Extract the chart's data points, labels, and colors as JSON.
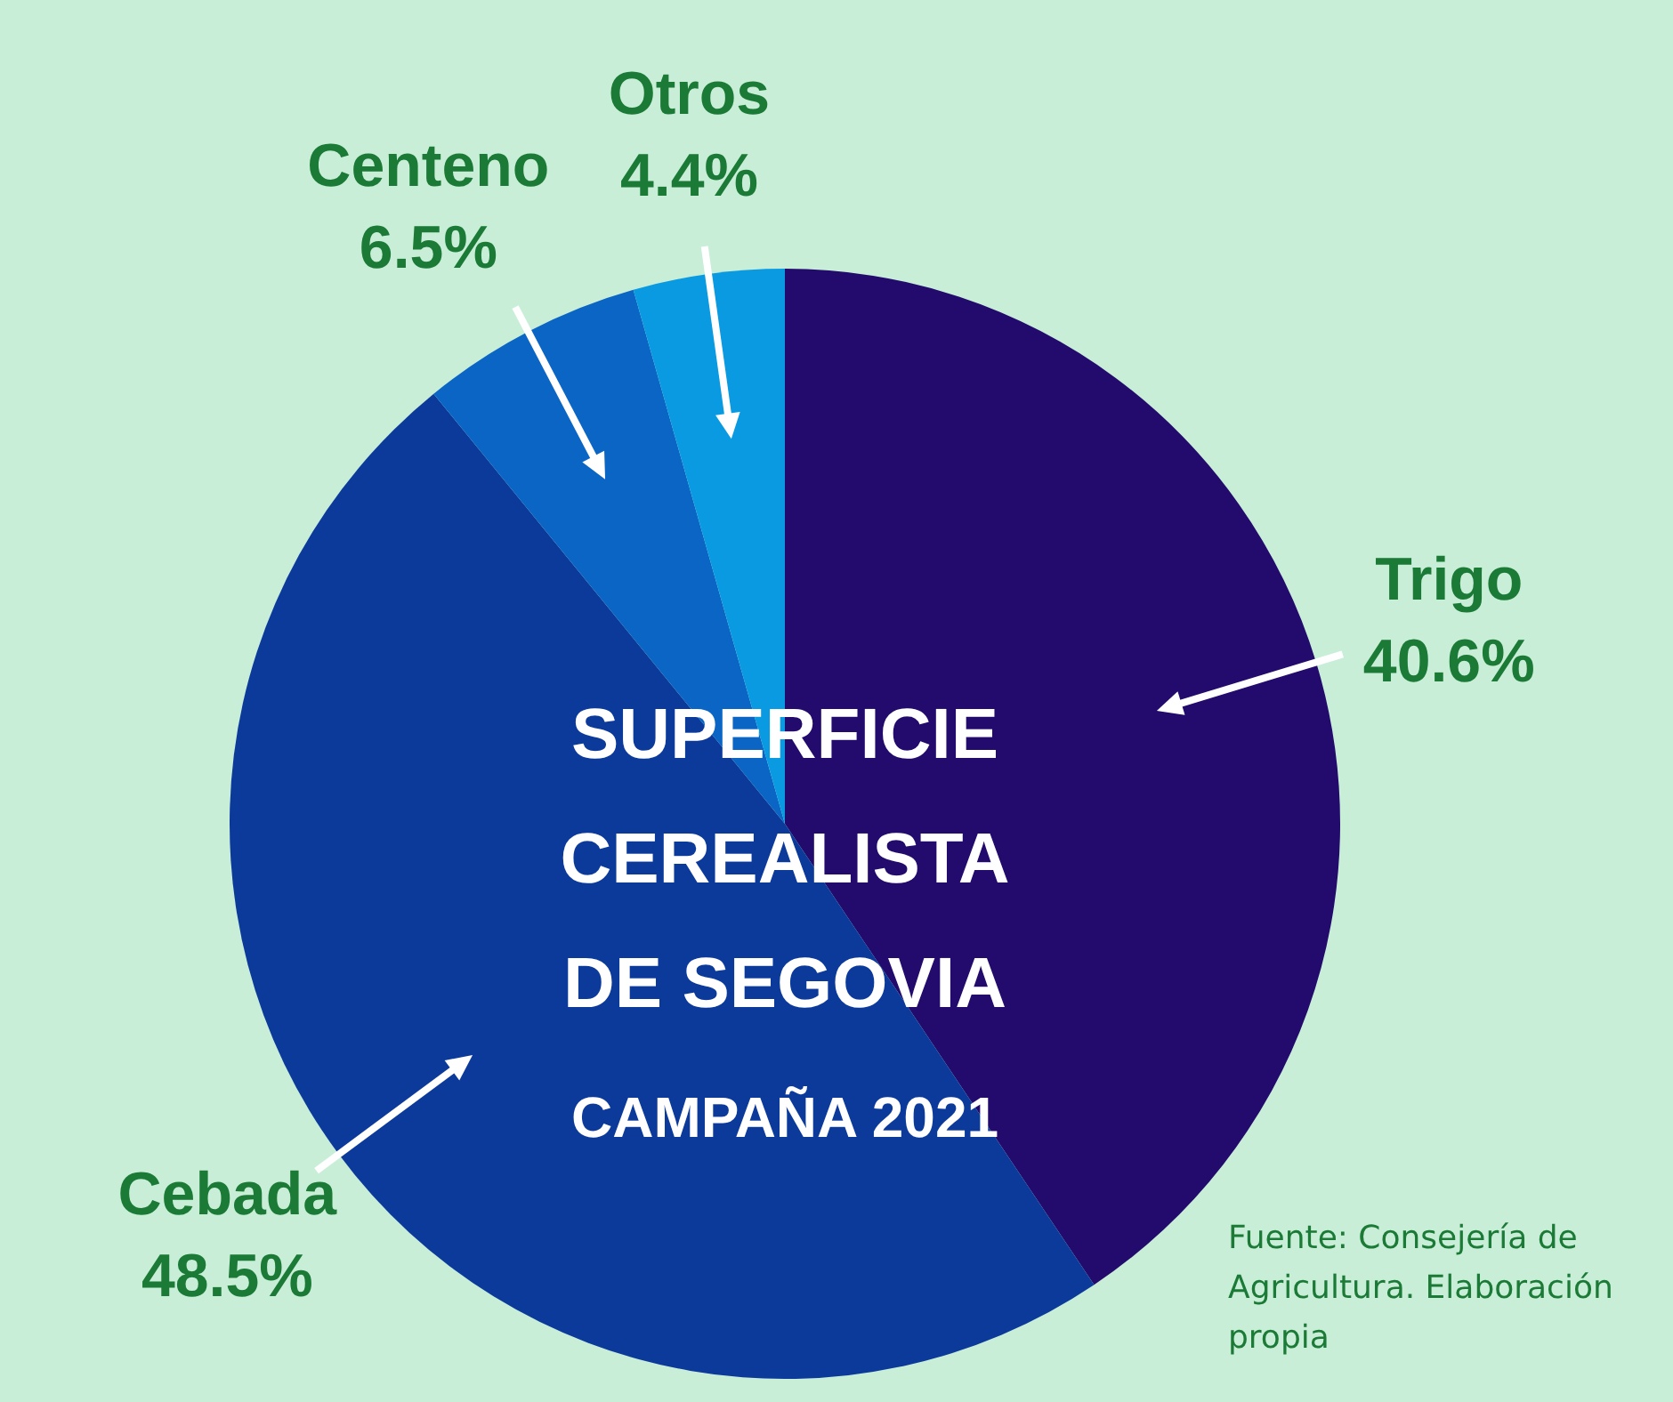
{
  "chart_data": {
    "type": "pie",
    "title": "SUPERFICIE CEREALISTA DE SEGOVIA",
    "subtitle": "CAMPAÑA 2021",
    "categories": [
      "Trigo",
      "Cebada",
      "Centeno",
      "Otros"
    ],
    "values": [
      40.6,
      48.5,
      6.5,
      4.4
    ],
    "colors": [
      "#220b6c",
      "#0c3a9b",
      "#0a65c4",
      "#0a9ae2"
    ],
    "value_labels": [
      "40.6%",
      "48.5%",
      "6.5%",
      "4.4%"
    ],
    "legend": false,
    "annotations": [
      "Fuente: Consejería de Agricultura. Elaboración propia"
    ]
  }
}
